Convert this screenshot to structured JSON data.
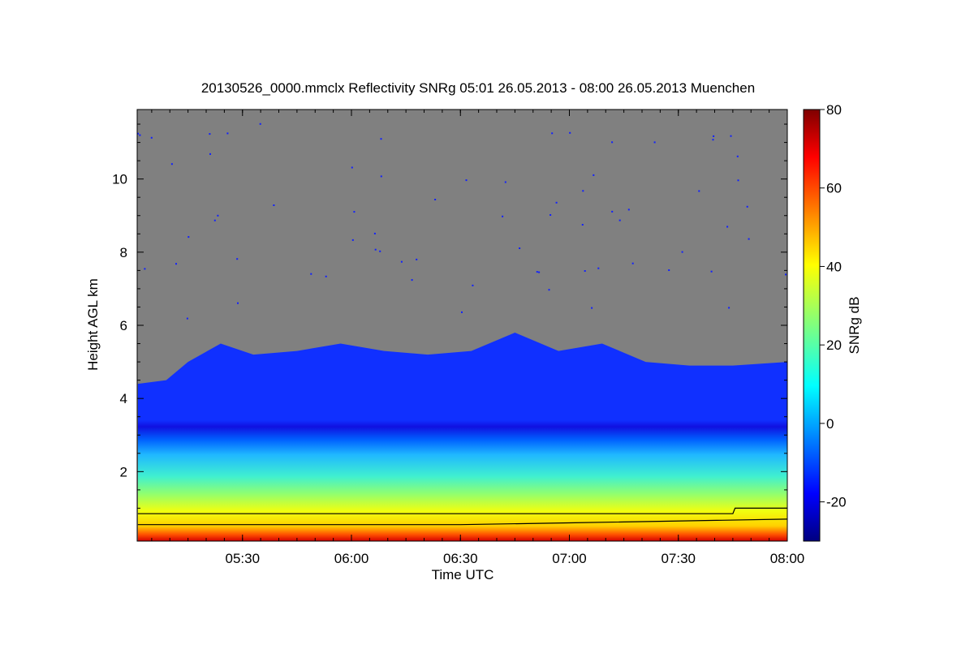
{
  "chart_data": {
    "type": "heatmap",
    "title": "20130526_0000.mmclx Reflectivity SNRg   05:01 26.05.2013 - 08:00 26.05.2013 Muenchen",
    "xlabel": "Time UTC",
    "ylabel": "Height AGL km",
    "colorbar_label": "SNRg dB",
    "x_range": [
      "05:01",
      "08:00"
    ],
    "xlim_hours": [
      5.0167,
      8.0
    ],
    "ylim_km": [
      0.1,
      11.9
    ],
    "x_ticks": [
      {
        "label": "05:30",
        "value": 5.5
      },
      {
        "label": "06:00",
        "value": 6.0
      },
      {
        "label": "06:30",
        "value": 6.5
      },
      {
        "label": "07:00",
        "value": 7.0
      },
      {
        "label": "07:30",
        "value": 7.5
      },
      {
        "label": "08:00",
        "value": 8.0
      }
    ],
    "y_ticks": [
      {
        "label": "2",
        "value": 2
      },
      {
        "label": "4",
        "value": 4
      },
      {
        "label": "6",
        "value": 6
      },
      {
        "label": "8",
        "value": 8
      },
      {
        "label": "10",
        "value": 10
      }
    ],
    "colorbar_ticks": [
      {
        "label": "-20",
        "value": -20
      },
      {
        "label": "0",
        "value": 0
      },
      {
        "label": "20",
        "value": 20
      },
      {
        "label": "40",
        "value": 40
      },
      {
        "label": "60",
        "value": 60
      },
      {
        "label": "80",
        "value": 80
      }
    ],
    "colorbar_range": [
      -30,
      80
    ],
    "colormap": "jet",
    "background_color": "#808080",
    "cloud_top_km": [
      {
        "t": 5.02,
        "h": 4.4
      },
      {
        "t": 5.15,
        "h": 4.5
      },
      {
        "t": 5.25,
        "h": 5.0
      },
      {
        "t": 5.4,
        "h": 5.5
      },
      {
        "t": 5.55,
        "h": 5.2
      },
      {
        "t": 5.75,
        "h": 5.3
      },
      {
        "t": 5.95,
        "h": 5.5
      },
      {
        "t": 6.15,
        "h": 5.3
      },
      {
        "t": 6.35,
        "h": 5.2
      },
      {
        "t": 6.55,
        "h": 5.3
      },
      {
        "t": 6.75,
        "h": 5.8
      },
      {
        "t": 6.95,
        "h": 5.3
      },
      {
        "t": 7.15,
        "h": 5.5
      },
      {
        "t": 7.35,
        "h": 5.0
      },
      {
        "t": 7.55,
        "h": 4.9
      },
      {
        "t": 7.75,
        "h": 4.9
      },
      {
        "t": 8.0,
        "h": 5.0
      }
    ],
    "lines_km": [
      {
        "name": "upper line",
        "points": [
          {
            "t": 5.02,
            "h": 0.85
          },
          {
            "t": 7.75,
            "h": 0.85
          },
          {
            "t": 7.76,
            "h": 1.0
          },
          {
            "t": 8.0,
            "h": 1.0
          }
        ]
      },
      {
        "name": "lower line",
        "points": [
          {
            "t": 5.02,
            "h": 0.55
          },
          {
            "t": 6.5,
            "h": 0.55
          },
          {
            "t": 7.0,
            "h": 0.6
          },
          {
            "t": 8.0,
            "h": 0.7
          }
        ]
      }
    ]
  }
}
